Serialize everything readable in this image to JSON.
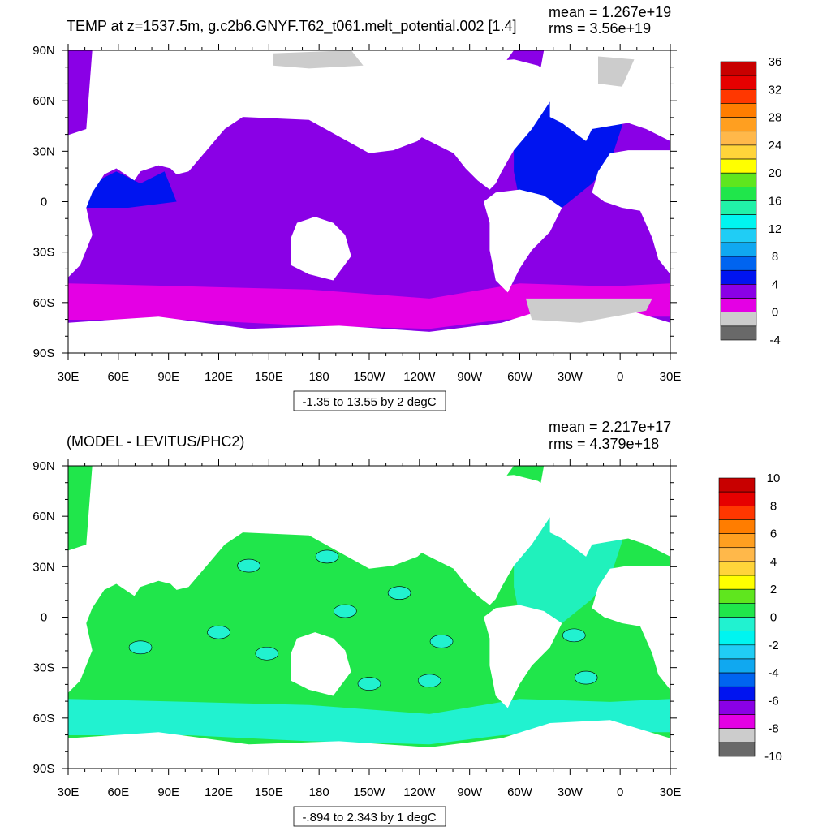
{
  "chart_data": [
    {
      "type": "heatmap",
      "title": "TEMP at z=1537.5m, g.c2b6.GNYF.T62_t061.melt_potential.002 [1.4]",
      "stats": {
        "mean": "mean = 1.267e+19",
        "rms": "rms = 3.56e+19"
      },
      "range_label": "-1.35 to 13.55 by 2 degC",
      "x_ticks": [
        "30E",
        "60E",
        "90E",
        "120E",
        "150E",
        "180",
        "150W",
        "120W",
        "90W",
        "60W",
        "30W",
        "0",
        "30E"
      ],
      "y_ticks": [
        "90N",
        "60N",
        "30N",
        "0",
        "30S",
        "60S",
        "90S"
      ],
      "colorbar_labels": [
        "36",
        "32",
        "28",
        "24",
        "20",
        "16",
        "12",
        "8",
        "4",
        "0",
        "-4"
      ],
      "colorbar_colors": [
        "#c80000",
        "#e60000",
        "#ff3700",
        "#ff7d00",
        "#ff9f20",
        "#ffb84a",
        "#ffd43a",
        "#ffff00",
        "#5fe61e",
        "#20e64b",
        "#21f2a8",
        "#00f5f0",
        "#20cdf5",
        "#10a8f0",
        "#0064f0",
        "#0014f0",
        "#8a00e6",
        "#e400e4",
        "#cccccc",
        "#696969"
      ],
      "region_colors": {
        "ocean": "#8a00e6",
        "south": "#e400e4",
        "atlantic": "#0014f0",
        "land": "#ffffff",
        "ice": "#cccccc"
      }
    },
    {
      "type": "heatmap",
      "title": "(MODEL - LEVITUS/PHC2)",
      "stats": {
        "mean": "mean = 2.217e+17",
        "rms": "rms = 4.379e+18"
      },
      "range_label": "-.894 to 2.343 by 1 degC",
      "x_ticks": [
        "30E",
        "60E",
        "90E",
        "120E",
        "150E",
        "180",
        "150W",
        "120W",
        "90W",
        "60W",
        "30W",
        "0",
        "30E"
      ],
      "y_ticks": [
        "90N",
        "60N",
        "30N",
        "0",
        "30S",
        "60S",
        "90S"
      ],
      "colorbar_labels": [
        "10",
        "8",
        "6",
        "4",
        "2",
        "0",
        "-2",
        "-4",
        "-6",
        "-8",
        "-10"
      ],
      "colorbar_colors": [
        "#c80000",
        "#e60000",
        "#ff3700",
        "#ff7d00",
        "#ff9f20",
        "#ffb84a",
        "#ffd43a",
        "#ffff00",
        "#5fe61e",
        "#20e64b",
        "#21f2d0",
        "#00f5f0",
        "#20cdf5",
        "#10a8f0",
        "#0064f0",
        "#0014f0",
        "#8a00e6",
        "#e400e4",
        "#cccccc",
        "#696969"
      ],
      "region_colors": {
        "ocean": "#20e64b",
        "south": "#21f2d0",
        "atlantic": "#21f2d0",
        "land": "#ffffff",
        "ice": "#ffffff"
      }
    }
  ]
}
